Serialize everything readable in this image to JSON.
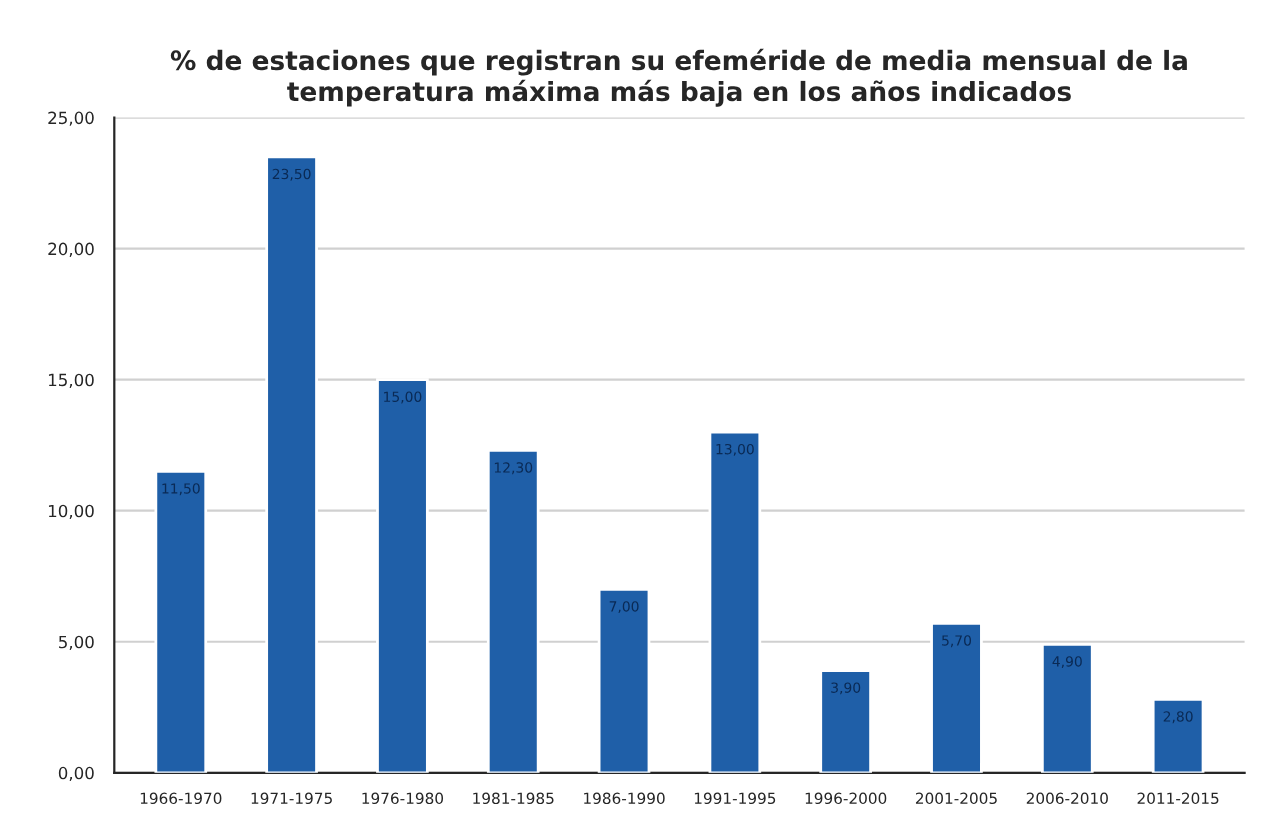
{
  "chart_data": {
    "type": "bar",
    "title": "% de estaciones que registran su efeméride de media mensual de la\ntemperatura máxima más baja en los años indicados",
    "categories": [
      "1966-1970",
      "1971-1975",
      "1976-1980",
      "1981-1985",
      "1986-1990",
      "1991-1995",
      "1996-2000",
      "2001-2005",
      "2006-2010",
      "2011-2015"
    ],
    "values": [
      11.5,
      23.5,
      15.0,
      12.3,
      7.0,
      13.0,
      3.9,
      5.7,
      4.9,
      2.8
    ],
    "color": "#1f5fa8",
    "ylim": [
      0,
      25
    ],
    "yticks": [
      {
        "value": 0,
        "label": "0,00"
      },
      {
        "value": 5,
        "label": "5,00"
      },
      {
        "value": 10,
        "label": "10,00"
      },
      {
        "value": 15,
        "label": "15,00"
      },
      {
        "value": 20,
        "label": "20,00"
      },
      {
        "value": 25,
        "label": "25,00"
      }
    ],
    "value_labels": [
      "11,50",
      "23,50",
      "15,00",
      "12,30",
      "7,00",
      "13,00",
      "3,90",
      "5,70",
      "4,90",
      "2,80"
    ],
    "grid": "y"
  }
}
